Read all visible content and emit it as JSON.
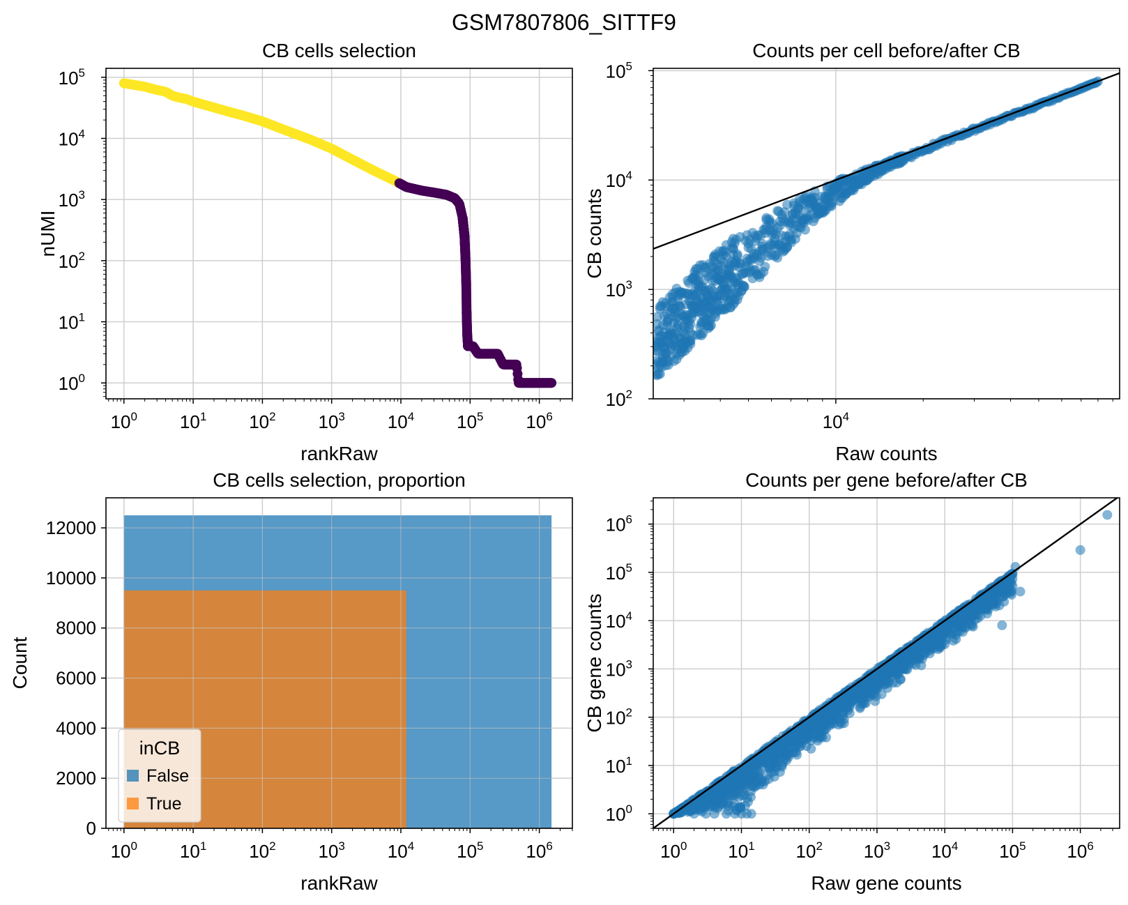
{
  "figure": {
    "suptitle": "GSM7807806_SITTF9"
  },
  "colors": {
    "selected_yellow": "#fde725",
    "unselected_purple": "#440154",
    "scatter_blue": "#1f77b4",
    "false_blue": "#1f77b4",
    "true_orange": "#ff7f0e"
  },
  "chart_data": [
    {
      "type": "scatter",
      "title": "CB cells selection",
      "xlabel": "rankRaw",
      "ylabel": "nUMI",
      "xscale": "log",
      "yscale": "log",
      "xlim": [
        0.55,
        3000000
      ],
      "ylim": [
        0.55,
        140000
      ],
      "grid": true,
      "xticks": [
        {
          "base": "10",
          "exp": "0"
        },
        {
          "base": "10",
          "exp": "1"
        },
        {
          "base": "10",
          "exp": "2"
        },
        {
          "base": "10",
          "exp": "3"
        },
        {
          "base": "10",
          "exp": "4"
        },
        {
          "base": "10",
          "exp": "5"
        },
        {
          "base": "10",
          "exp": "6"
        }
      ],
      "yticks": [
        {
          "base": "10",
          "exp": "0"
        },
        {
          "base": "10",
          "exp": "1"
        },
        {
          "base": "10",
          "exp": "2"
        },
        {
          "base": "10",
          "exp": "3"
        },
        {
          "base": "10",
          "exp": "4"
        },
        {
          "base": "10",
          "exp": "5"
        }
      ],
      "series": [
        {
          "group": "selected",
          "color": "#fde725",
          "x": [
            1,
            2,
            3,
            4,
            5,
            6,
            8,
            10,
            15,
            20,
            30,
            50,
            100,
            200,
            500,
            1000,
            2000,
            4000,
            6000,
            8000,
            9500
          ],
          "y": [
            80000,
            70000,
            62000,
            58000,
            50000,
            47000,
            44000,
            40000,
            35000,
            32000,
            28000,
            24000,
            19000,
            14000,
            9500,
            6800,
            4500,
            3000,
            2400,
            2050,
            1850
          ]
        },
        {
          "group": "unselected",
          "color": "#440154",
          "x": [
            9500,
            12000,
            20000,
            30000,
            45000,
            60000,
            70000,
            78000,
            83000,
            86000,
            88000,
            89000,
            90000,
            91000,
            92000,
            93000,
            95000,
            100000,
            110000,
            130000,
            160000,
            200000,
            250000,
            300000,
            350000,
            400000,
            450000,
            470000,
            500000,
            700000,
            1000000,
            1500000
          ],
          "y": [
            1850,
            1600,
            1400,
            1300,
            1200,
            1050,
            850,
            500,
            250,
            100,
            40,
            15,
            9,
            6,
            5,
            4,
            4,
            4,
            4,
            3,
            3,
            3,
            3,
            2,
            2,
            2,
            2,
            2,
            1,
            1,
            1,
            1
          ]
        }
      ]
    },
    {
      "type": "scatter",
      "title": "Counts per cell before/after CB",
      "xlabel": "Raw counts",
      "ylabel": "CB counts",
      "xscale": "log",
      "yscale": "log",
      "xlim": [
        2350,
        95000
      ],
      "ylim": [
        100,
        105000
      ],
      "grid": true,
      "xticks": [
        {
          "base": "10",
          "exp": "4"
        }
      ],
      "yticks": [
        {
          "base": "10",
          "exp": "2"
        },
        {
          "base": "10",
          "exp": "3"
        },
        {
          "base": "10",
          "exp": "4"
        },
        {
          "base": "10",
          "exp": "5"
        }
      ],
      "reference_line": "y = x",
      "series": [
        {
          "color": "#1f77b4",
          "x": [
            2400,
            2450,
            2500,
            2600,
            2800,
            3000,
            3500,
            4000,
            5000,
            6000,
            7000,
            8000,
            10000,
            12000,
            15000,
            20000,
            25000,
            30000,
            40000,
            50000,
            55000,
            60000,
            70000,
            80000
          ],
          "y_low": [
            140,
            150,
            160,
            180,
            220,
            270,
            380,
            550,
            1000,
            1700,
            2600,
            3700,
            6000,
            8800,
            12500,
            18000,
            23000,
            28000,
            38000,
            47000,
            52000,
            58000,
            68000,
            78000
          ],
          "y_high": [
            650,
            700,
            750,
            850,
            1000,
            1250,
            1800,
            2400,
            3700,
            5000,
            6200,
            7400,
            9800,
            11900,
            14900,
            19900,
            24900,
            29900,
            39900,
            49900,
            54900,
            59900,
            69900,
            79900
          ]
        }
      ]
    },
    {
      "type": "bar",
      "title": "CB cells selection, proportion",
      "xlabel": "rankRaw",
      "ylabel": "Count",
      "xscale": "log",
      "xlim": [
        0.55,
        3000000
      ],
      "ylim": [
        0,
        13200
      ],
      "grid": true,
      "xticks": [
        {
          "base": "10",
          "exp": "0"
        },
        {
          "base": "10",
          "exp": "1"
        },
        {
          "base": "10",
          "exp": "2"
        },
        {
          "base": "10",
          "exp": "3"
        },
        {
          "base": "10",
          "exp": "4"
        },
        {
          "base": "10",
          "exp": "5"
        },
        {
          "base": "10",
          "exp": "6"
        }
      ],
      "yticks": [
        "0",
        "2000",
        "4000",
        "6000",
        "8000",
        "10000",
        "12000"
      ],
      "series": [
        {
          "name": "False",
          "color": "#1f77b4",
          "x_start": 1,
          "x_end": 1500000,
          "value": 12500
        },
        {
          "name": "True",
          "color": "#ff7f0e",
          "x_start": 1,
          "x_end": 12000,
          "value": 9500
        }
      ],
      "legend": {
        "title": "inCB",
        "entries": [
          "False",
          "True"
        ],
        "position": "lower-left"
      }
    },
    {
      "type": "scatter",
      "title": "Counts per gene before/after CB",
      "xlabel": "Raw gene counts",
      "ylabel": "CB gene counts",
      "xscale": "log",
      "yscale": "log",
      "xlim": [
        0.5,
        3800000
      ],
      "ylim": [
        0.5,
        3500000
      ],
      "grid": true,
      "xticks": [
        {
          "base": "10",
          "exp": "0"
        },
        {
          "base": "10",
          "exp": "1"
        },
        {
          "base": "10",
          "exp": "2"
        },
        {
          "base": "10",
          "exp": "3"
        },
        {
          "base": "10",
          "exp": "4"
        },
        {
          "base": "10",
          "exp": "5"
        },
        {
          "base": "10",
          "exp": "6"
        }
      ],
      "yticks": [
        {
          "base": "10",
          "exp": "0"
        },
        {
          "base": "10",
          "exp": "1"
        },
        {
          "base": "10",
          "exp": "2"
        },
        {
          "base": "10",
          "exp": "3"
        },
        {
          "base": "10",
          "exp": "4"
        },
        {
          "base": "10",
          "exp": "5"
        },
        {
          "base": "10",
          "exp": "6"
        }
      ],
      "reference_line": "y = x",
      "series": [
        {
          "color": "#1f77b4",
          "x": [
            1,
            2,
            3,
            5,
            10,
            20,
            50,
            100,
            200,
            500,
            1000,
            2000,
            5000,
            10000,
            20000,
            50000,
            100000
          ],
          "y_low": [
            1,
            1,
            1,
            1,
            1,
            3,
            8,
            18,
            40,
            110,
            220,
            460,
            1300,
            2800,
            5500,
            15000,
            30000
          ],
          "y_high": [
            1,
            2,
            3,
            5,
            10,
            20,
            50,
            100,
            200,
            500,
            1000,
            2000,
            5000,
            10000,
            20000,
            50000,
            100000
          ]
        },
        {
          "color": "#1f77b4",
          "outliers": true,
          "x": [
            1,
            2,
            3,
            4,
            6,
            8,
            10,
            12,
            14,
            1000000,
            2500000,
            110000,
            130000,
            70000
          ],
          "y": [
            1,
            1,
            1,
            1,
            1,
            1,
            1,
            1,
            1,
            290000,
            1550000,
            130000,
            40000,
            8000
          ]
        }
      ]
    }
  ]
}
